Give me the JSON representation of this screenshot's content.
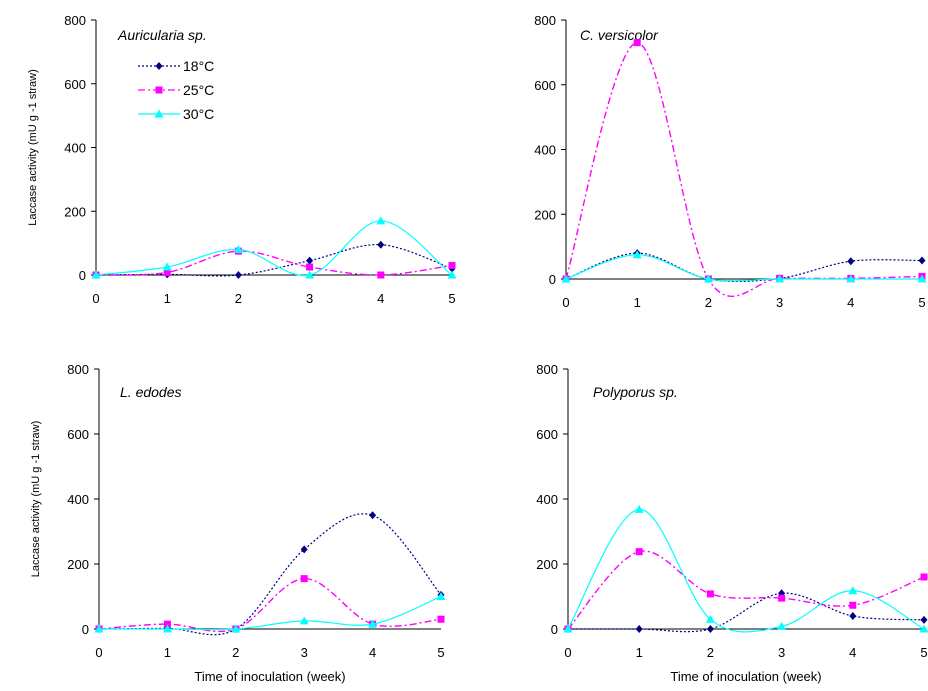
{
  "chart_data": [
    {
      "type": "line",
      "title": "Auricularia sp.",
      "xlabel": "",
      "ylabel": "Laccase activity (mU g -1 straw)",
      "x": [
        0,
        1,
        2,
        3,
        4,
        5
      ],
      "ylim": [
        0,
        800
      ],
      "yticks": [
        0,
        200,
        400,
        600,
        800
      ],
      "grid": false,
      "legend": "top-left",
      "series": [
        {
          "name": "18°C",
          "values": [
            0,
            2,
            0,
            45,
            95,
            20
          ],
          "color": "#000080"
        },
        {
          "name": "25°C",
          "values": [
            0,
            8,
            75,
            25,
            0,
            30
          ],
          "color": "#ff00ff"
        },
        {
          "name": "30°C",
          "values": [
            0,
            25,
            80,
            0,
            170,
            0
          ],
          "color": "#00ffff"
        }
      ]
    },
    {
      "type": "line",
      "title": "C. versicolor",
      "xlabel": "",
      "ylabel": "",
      "x": [
        0,
        1,
        2,
        3,
        4,
        5
      ],
      "ylim": [
        0,
        800
      ],
      "yticks": [
        0,
        200,
        400,
        600,
        800
      ],
      "grid": false,
      "series": [
        {
          "name": "18°C",
          "values": [
            0,
            80,
            0,
            2,
            55,
            57
          ],
          "color": "#000080"
        },
        {
          "name": "25°C",
          "values": [
            0,
            730,
            0,
            2,
            2,
            8
          ],
          "color": "#ff00ff"
        },
        {
          "name": "30°C",
          "values": [
            0,
            75,
            0,
            0,
            0,
            0
          ],
          "color": "#00ffff"
        }
      ]
    },
    {
      "type": "line",
      "title": "L. edodes",
      "xlabel": "Time of inoculation (week)",
      "ylabel": "Laccase activity (mU g -1 straw)",
      "x": [
        0,
        1,
        2,
        3,
        4,
        5
      ],
      "ylim": [
        0,
        800
      ],
      "yticks": [
        0,
        200,
        400,
        600,
        800
      ],
      "grid": false,
      "series": [
        {
          "name": "18°C",
          "values": [
            0,
            2,
            0,
            245,
            350,
            105
          ],
          "color": "#000080"
        },
        {
          "name": "25°C",
          "values": [
            0,
            15,
            0,
            155,
            15,
            30
          ],
          "color": "#ff00ff"
        },
        {
          "name": "30°C",
          "values": [
            0,
            0,
            0,
            25,
            15,
            100
          ],
          "color": "#00ffff"
        }
      ]
    },
    {
      "type": "line",
      "title": "Polyporus sp.",
      "xlabel": "Time of inoculation (week)",
      "ylabel": "",
      "x": [
        0,
        1,
        2,
        3,
        4,
        5
      ],
      "ylim": [
        0,
        800
      ],
      "yticks": [
        0,
        200,
        400,
        600,
        800
      ],
      "grid": false,
      "series": [
        {
          "name": "18°C",
          "values": [
            0,
            0,
            0,
            110,
            40,
            28
          ],
          "color": "#000080"
        },
        {
          "name": "25°C",
          "values": [
            0,
            238,
            108,
            95,
            73,
            160
          ],
          "color": "#ff00ff"
        },
        {
          "name": "30°C",
          "values": [
            0,
            368,
            30,
            8,
            118,
            0
          ],
          "color": "#00ffff"
        }
      ]
    }
  ],
  "legend": {
    "items": [
      {
        "label": "18°C",
        "color": "#000080",
        "marker": "diamond",
        "dash": "dotted"
      },
      {
        "label": "25°C",
        "color": "#ff00ff",
        "marker": "square",
        "dash": "dashdot"
      },
      {
        "label": "30°C",
        "color": "#00ffff",
        "marker": "triangle",
        "dash": "solid"
      }
    ]
  }
}
